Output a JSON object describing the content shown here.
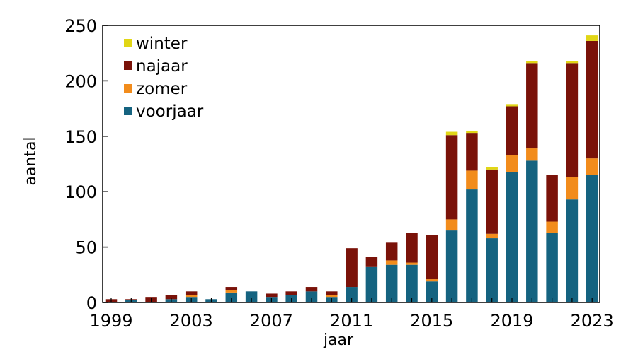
{
  "chart_data": {
    "type": "bar",
    "stacked": true,
    "xlabel": "jaar",
    "ylabel": "aantal",
    "ylim": [
      0,
      250
    ],
    "yticks": [
      0,
      50,
      100,
      150,
      200,
      250
    ],
    "xtick_labels": [
      "1999",
      "2003",
      "2007",
      "2011",
      "2015",
      "2019",
      "2023"
    ],
    "legend_position": "top-left",
    "categories": [
      "1999",
      "2000",
      "2001",
      "2002",
      "2003",
      "2004",
      "2005",
      "2006",
      "2007",
      "2008",
      "2009",
      "2010",
      "2011",
      "2012",
      "2013",
      "2014",
      "2015",
      "2016",
      "2017",
      "2018",
      "2019",
      "2020",
      "2021",
      "2022",
      "2023"
    ],
    "series": [
      {
        "name": "voorjaar",
        "color": "#156380",
        "values": [
          0,
          2,
          0,
          3,
          5,
          3,
          9,
          10,
          5,
          7,
          10,
          5,
          14,
          32,
          34,
          34,
          19,
          65,
          102,
          58,
          118,
          128,
          63,
          93,
          115
        ]
      },
      {
        "name": "zomer",
        "color": "#f28c1c",
        "values": [
          0,
          0,
          0,
          0,
          2,
          0,
          2,
          0,
          0,
          0,
          0,
          2,
          0,
          0,
          4,
          2,
          2,
          10,
          17,
          4,
          15,
          11,
          10,
          20,
          15
        ]
      },
      {
        "name": "najaar",
        "color": "#7a1209",
        "values": [
          3,
          1,
          5,
          4,
          3,
          0,
          3,
          0,
          3,
          3,
          4,
          3,
          35,
          9,
          16,
          27,
          40,
          76,
          34,
          58,
          44,
          77,
          42,
          103,
          106
        ]
      },
      {
        "name": "winter",
        "color": "#e1d616",
        "values": [
          0,
          0,
          0,
          0,
          0,
          0,
          0,
          0,
          0,
          0,
          0,
          0,
          0,
          0,
          0,
          0,
          0,
          3,
          2,
          2,
          2,
          2,
          0,
          2,
          5
        ]
      }
    ],
    "legend": [
      "winter",
      "najaar",
      "zomer",
      "voorjaar"
    ]
  }
}
